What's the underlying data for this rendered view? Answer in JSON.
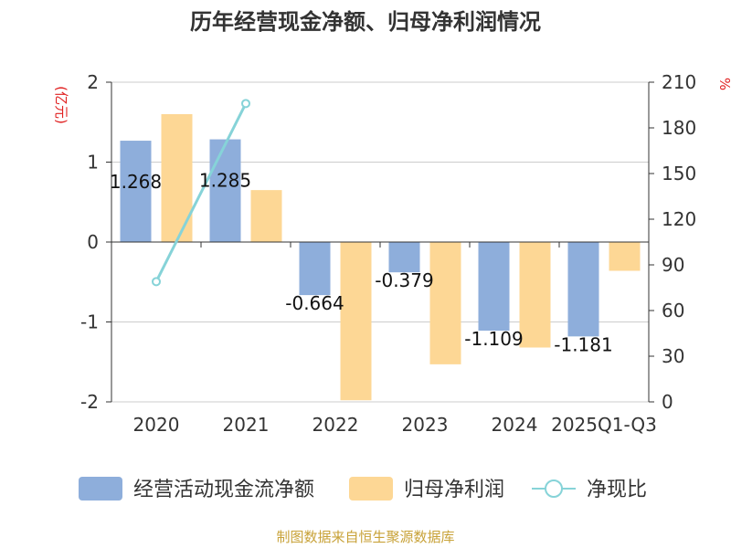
{
  "chart_data": {
    "type": "bar",
    "title": "历年经营现金净额、归母净利润情况",
    "categories": [
      "2020",
      "2021",
      "2022",
      "2023",
      "2024",
      "2025Q1-Q3"
    ],
    "y_left": {
      "unit": "(亿元)",
      "ylim": [
        -2,
        2
      ],
      "ticks": [
        "2",
        "1",
        "0",
        "-1",
        "-2"
      ],
      "tick_values": [
        2,
        1,
        0,
        -1,
        -2
      ]
    },
    "y_right": {
      "unit": "%",
      "ylim": [
        0,
        210
      ],
      "ticks": [
        "210",
        "180",
        "150",
        "120",
        "90",
        "60",
        "30",
        "0"
      ],
      "tick_values": [
        210,
        180,
        150,
        120,
        90,
        60,
        30,
        0
      ]
    },
    "series": [
      {
        "name": "经营活动现金流净额",
        "kind": "bar",
        "axis": "left",
        "color": "#8eaedb",
        "values": [
          1.268,
          1.285,
          -0.664,
          -0.379,
          -1.109,
          -1.181
        ],
        "labels": [
          "1.268",
          "1.285",
          "-0.664",
          "-0.379",
          "-1.109",
          "-1.181"
        ]
      },
      {
        "name": "归母净利润",
        "kind": "bar",
        "axis": "left",
        "color": "#fdd795",
        "values": [
          1.6,
          0.65,
          -1.98,
          -1.53,
          -1.32,
          -0.36
        ]
      },
      {
        "name": "净现比",
        "kind": "line",
        "axis": "right",
        "color": "#86d3d8",
        "values": [
          79,
          196,
          null,
          null,
          null,
          null
        ]
      }
    ],
    "grid": true,
    "legend_position": "bottom"
  },
  "source": "制图数据来自恒生聚源数据库"
}
